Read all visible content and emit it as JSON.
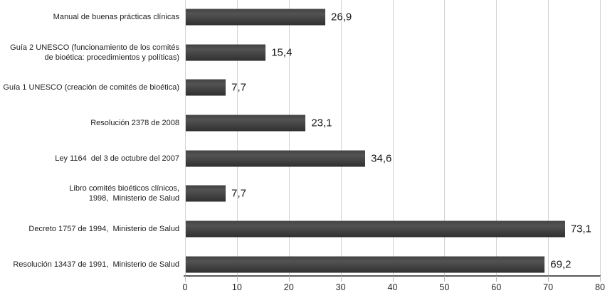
{
  "chart_data": {
    "type": "bar",
    "orientation": "horizontal",
    "title": "",
    "xlabel": "",
    "ylabel": "",
    "categories": [
      [
        "Manual de buenas prácticas clínicas"
      ],
      [
        "Guía 2 UNESCO (funcionamiento de los comités",
        "de bioética: procedimientos y políticas)"
      ],
      [
        "Guía 1 UNESCO (creación de comités de bioética)"
      ],
      [
        "Resolución 2378 de 2008"
      ],
      [
        "Ley 1164  del 3 de octubre del 2007"
      ],
      [
        "Libro comités bioéticos clínicos,",
        "1998,  Ministerio de Salud"
      ],
      [
        "Decreto 1757 de 1994,  Ministerio de Salud"
      ],
      [
        "Resolución 13437 de 1991,  Ministerio de Salud"
      ]
    ],
    "values": [
      26.9,
      15.4,
      7.7,
      23.1,
      34.6,
      7.7,
      73.1,
      69.2
    ],
    "value_labels": [
      "26,9",
      "15,4",
      "7,7",
      "23,1",
      "34,6",
      "7,7",
      "73,1",
      "69,2"
    ],
    "xlim": [
      0,
      80
    ],
    "x_ticks": [
      0,
      10,
      20,
      30,
      40,
      50,
      60,
      70,
      80
    ],
    "grid": "vertical-major-only",
    "legend": "none",
    "colors": {
      "bar": "#404040",
      "gridline": "#d6d6d6",
      "axis_line": "#595959",
      "tick_mark": "#bfbfbf",
      "text": "#212121",
      "background": "#ffffff"
    }
  }
}
